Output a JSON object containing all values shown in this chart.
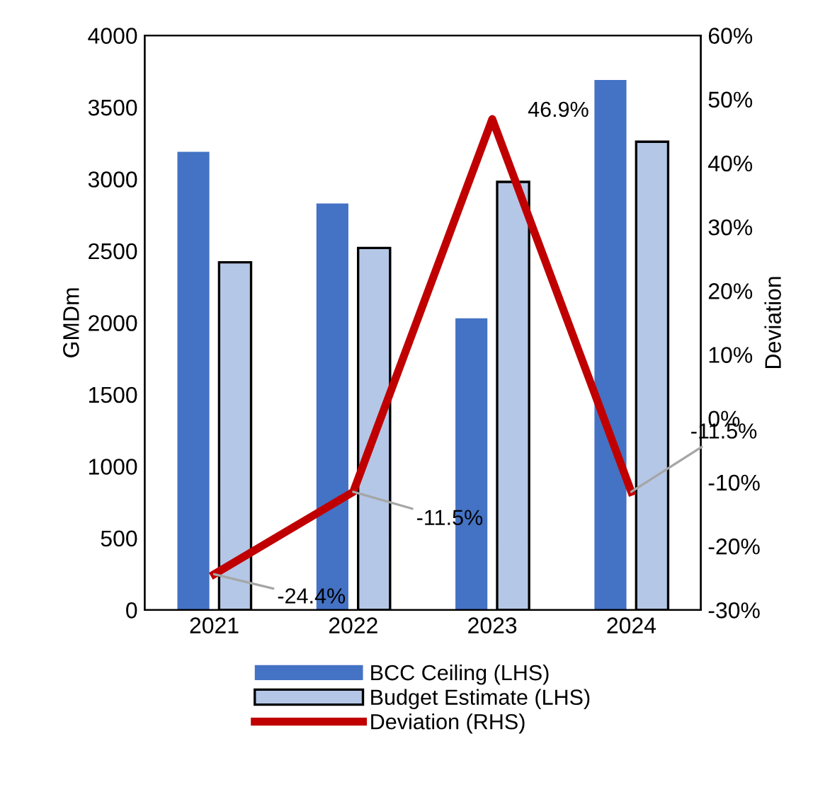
{
  "chart_data": {
    "type": "bar",
    "categories": [
      "2021",
      "2022",
      "2023",
      "2024"
    ],
    "ylabel": "GMDm",
    "y2label": "Deviation",
    "ylim": [
      0,
      4000
    ],
    "yticks": [
      0,
      500,
      1000,
      1500,
      2000,
      2500,
      3000,
      3500,
      4000
    ],
    "y2lim": [
      -30,
      60
    ],
    "y2ticks": [
      {
        "value": -30,
        "label": "-30%"
      },
      {
        "value": -20,
        "label": "-20%"
      },
      {
        "value": -10,
        "label": "-10%"
      },
      {
        "value": 0,
        "label": "0%"
      },
      {
        "value": 10,
        "label": "10%"
      },
      {
        "value": 20,
        "label": "20%"
      },
      {
        "value": 30,
        "label": "30%"
      },
      {
        "value": 40,
        "label": "40%"
      },
      {
        "value": 50,
        "label": "50%"
      },
      {
        "value": 60,
        "label": "60%"
      }
    ],
    "series": [
      {
        "name": "BCC Ceiling (LHS)",
        "color": "#4472c4",
        "values": [
          3190,
          2830,
          2030,
          3690
        ]
      },
      {
        "name": "Budget Estimate (LHS)",
        "color": "#b4c7e7",
        "values": [
          2420,
          2520,
          2980,
          3260
        ]
      },
      {
        "name": "Deviation (RHS)",
        "type": "line",
        "axis": "y2",
        "color": "#c00000",
        "values": [
          -24.4,
          -11.5,
          46.9,
          -11.5
        ],
        "value_labels": [
          "-24.4%",
          "-11.5%",
          "46.9%",
          "-11.5%"
        ]
      }
    ],
    "grid": false,
    "legend": "bottom",
    "marker": "none",
    "line_style": "solid"
  }
}
